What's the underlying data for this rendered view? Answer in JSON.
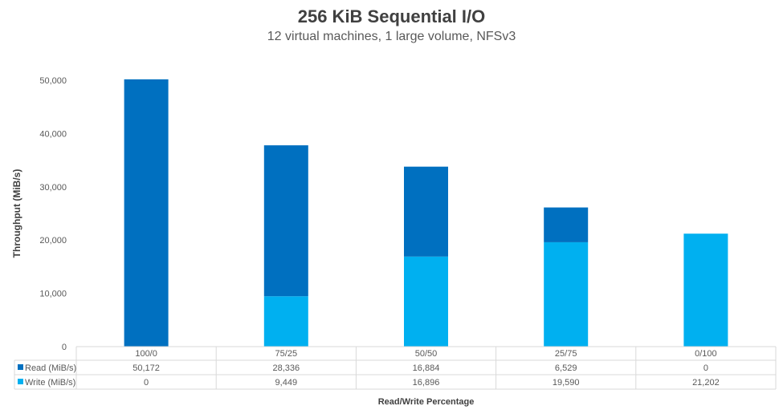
{
  "chart_data": {
    "type": "bar",
    "stacked": true,
    "title": "256 KiB Sequential I/O",
    "subtitle": "12 virtual machines, 1 large volume, NFSv3",
    "xlabel": "Read/Write Percentage",
    "ylabel": "Throughput (MiB/s)",
    "ylim": [
      0,
      50000
    ],
    "yticks": [
      0,
      10000,
      20000,
      30000,
      40000,
      50000
    ],
    "ytick_labels": [
      "0",
      "10,000",
      "20,000",
      "30,000",
      "40,000",
      "50,000"
    ],
    "grid": false,
    "legend": "data-table",
    "categories": [
      "100/0",
      "75/25",
      "50/50",
      "25/75",
      "0/100"
    ],
    "series": [
      {
        "name": "Write (MiB/s)",
        "color": "#00B0F0",
        "values": [
          0,
          9449,
          16896,
          19590,
          21202
        ],
        "labels": [
          "0",
          "9,449",
          "16,896",
          "19,590",
          "21,202"
        ]
      },
      {
        "name": "Read (MiB/s)",
        "color": "#0070C0",
        "values": [
          50172,
          28336,
          16884,
          6529,
          0
        ],
        "labels": [
          "50,172",
          "28,336",
          "16,884",
          "6,529",
          "0"
        ]
      }
    ]
  }
}
